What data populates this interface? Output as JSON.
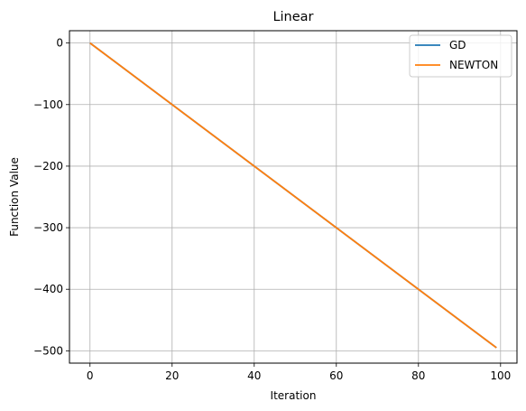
{
  "chart_data": {
    "type": "line",
    "title": "Linear",
    "xlabel": "Iteration",
    "ylabel": "Function Value",
    "xlim": [
      -5,
      104
    ],
    "ylim": [
      -520,
      20
    ],
    "xticks": [
      0,
      20,
      40,
      60,
      80,
      100
    ],
    "yticks": [
      0,
      -100,
      -200,
      -300,
      -400,
      -500
    ],
    "xtick_labels": [
      "0",
      "20",
      "40",
      "60",
      "80",
      "100"
    ],
    "ytick_labels": [
      "0",
      "−100",
      "−200",
      "−300",
      "−400",
      "−500"
    ],
    "grid": true,
    "legend_position": "top-right",
    "series": [
      {
        "name": "GD",
        "color": "#1f77b4",
        "x": [
          0,
          99
        ],
        "y": [
          0,
          -495
        ]
      },
      {
        "name": "NEWTON",
        "color": "#ff7f0e",
        "x": [
          0,
          99
        ],
        "y": [
          0,
          -495
        ]
      }
    ]
  }
}
